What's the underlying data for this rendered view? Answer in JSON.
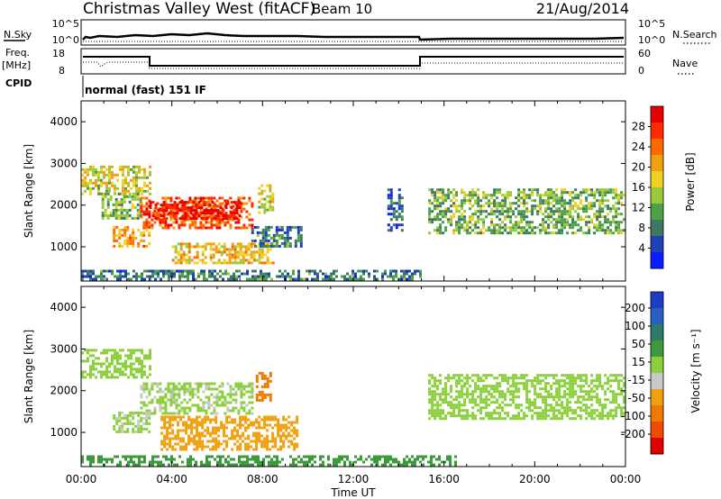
{
  "header": {
    "radar": "Christmas Valley West (fitACF)",
    "beam": "Beam 10",
    "date": "21/Aug/2014"
  },
  "status": {
    "nsky_label": "N.Sky",
    "nsky_ticks": [
      "10^5",
      "10^0"
    ],
    "nsky_right_ticks": [
      "10^5",
      "10^0"
    ],
    "nsearch_label": "N.Search",
    "freq_label": "Freq.",
    "freq_unit": "[MHz]",
    "freq_ticks": [
      "18",
      "8"
    ],
    "nave_ticks": [
      "60",
      "0"
    ],
    "nave_label": "Nave",
    "cpid_label": "CPID",
    "cpid_text": "normal (fast) 151 IF"
  },
  "time_axis": {
    "label": "Time UT",
    "ticks": [
      "00:00",
      "04:00",
      "08:00",
      "12:00",
      "16:00",
      "20:00",
      "00:00"
    ]
  },
  "chart_data": [
    {
      "type": "heatmap",
      "parameter": "Power",
      "ylabel": "Slant Range [km]",
      "xlabel": "Time UT",
      "y_ticks": [
        1000,
        2000,
        3000,
        4000
      ],
      "ylim": [
        180,
        4500
      ],
      "x_ticks": [
        "00:00",
        "04:00",
        "08:00",
        "12:00",
        "16:00",
        "20:00",
        "00:00"
      ],
      "colorbar": {
        "label": "Power [dB]",
        "ticks": [
          4,
          8,
          12,
          16,
          20,
          24,
          28
        ],
        "colors": [
          "#0a1eff",
          "#2040b4",
          "#3c7864",
          "#4ca048",
          "#9cc83c",
          "#f0d020",
          "#f0a010",
          "#ff6a00",
          "#ff2a00",
          "#e80000"
        ]
      },
      "regions": [
        {
          "t": [
            0.0,
            3.0
          ],
          "r": [
            2300,
            2950
          ],
          "level": 16
        },
        {
          "t": [
            0.9,
            2.6
          ],
          "r": [
            1700,
            2300
          ],
          "level": 12
        },
        {
          "t": [
            2.6,
            7.5
          ],
          "r": [
            1450,
            2200
          ],
          "level": 24
        },
        {
          "t": [
            3.0,
            7.0
          ],
          "r": [
            1700,
            2100
          ],
          "level": 28
        },
        {
          "t": [
            1.4,
            3.0
          ],
          "r": [
            1000,
            1500
          ],
          "level": 20
        },
        {
          "t": [
            4.0,
            8.5
          ],
          "r": [
            600,
            1100
          ],
          "level": 18
        },
        {
          "t": [
            7.5,
            9.7
          ],
          "r": [
            1000,
            1500
          ],
          "level": 8
        },
        {
          "t": [
            7.8,
            8.4
          ],
          "r": [
            1800,
            2500
          ],
          "level": 16
        },
        {
          "t": [
            13.5,
            14.2
          ],
          "r": [
            1400,
            2400
          ],
          "level": 6
        },
        {
          "t": [
            15.3,
            24.0
          ],
          "r": [
            1300,
            2400
          ],
          "level": 12
        },
        {
          "t": [
            0.0,
            15.0
          ],
          "r": [
            200,
            450
          ],
          "level": 8
        }
      ]
    },
    {
      "type": "heatmap",
      "parameter": "Velocity",
      "ylabel": "Slant Range [km]",
      "xlabel": "Time UT",
      "y_ticks": [
        1000,
        2000,
        3000,
        4000
      ],
      "ylim": [
        180,
        4500
      ],
      "x_ticks": [
        "00:00",
        "04:00",
        "08:00",
        "12:00",
        "16:00",
        "20:00",
        "00:00"
      ],
      "colorbar": {
        "label": "Velocity [m s⁻¹]",
        "ticks": [
          "200",
          "100",
          "50",
          "15",
          "-15",
          "-50",
          "-100",
          "-200"
        ],
        "colors": [
          "#1e3cc8",
          "#2860c0",
          "#2f7a6a",
          "#3c9a3c",
          "#8ccf3c",
          "#c8c8c8",
          "#f0a010",
          "#f07a00",
          "#f04a00",
          "#e00000"
        ]
      },
      "regions": [
        {
          "t": [
            0.0,
            3.0
          ],
          "r": [
            2300,
            3000
          ],
          "v": -5
        },
        {
          "t": [
            2.6,
            7.5
          ],
          "r": [
            1450,
            2200
          ],
          "v": -10
        },
        {
          "t": [
            1.4,
            3.0
          ],
          "r": [
            1000,
            1500
          ],
          "v": -10
        },
        {
          "t": [
            3.5,
            9.5
          ],
          "r": [
            600,
            1400
          ],
          "v": -60
        },
        {
          "t": [
            7.7,
            8.3
          ],
          "r": [
            1750,
            2450
          ],
          "v": -180
        },
        {
          "t": [
            15.3,
            24.0
          ],
          "r": [
            1300,
            2400
          ],
          "v": -5
        },
        {
          "t": [
            0.0,
            16.5
          ],
          "r": [
            200,
            450
          ],
          "v": 40
        }
      ]
    }
  ]
}
